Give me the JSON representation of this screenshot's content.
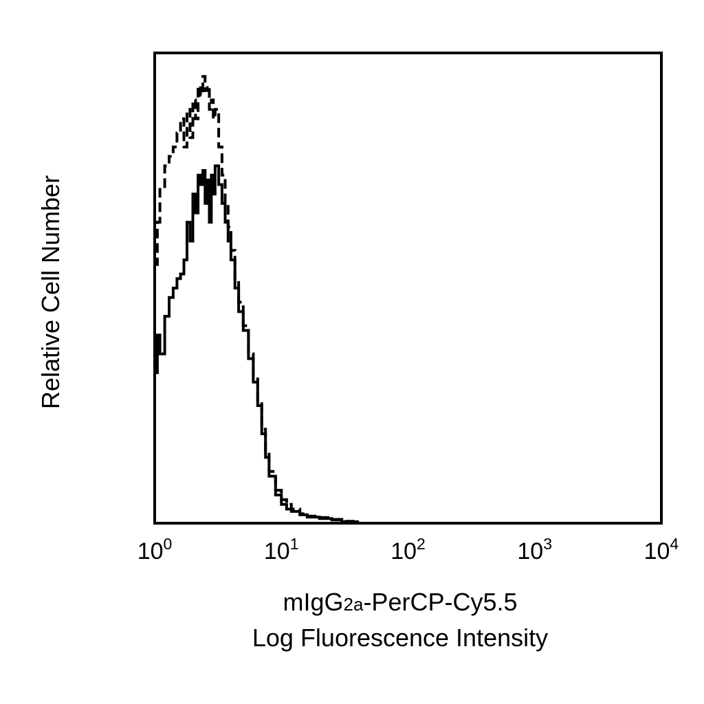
{
  "chart_data": {
    "type": "line",
    "title": "",
    "xlabel_line1_prefix": "mIgG",
    "xlabel_line1_subscript": "2a",
    "xlabel_line1_suffix": "-PerCP-Cy5.5",
    "xlabel_line2": "Log Fluorescence Intensity",
    "ylabel": "Relative Cell Number",
    "x_scale": "log",
    "xlim": [
      1,
      10000
    ],
    "ylim": [
      0,
      100
    ],
    "grid": false,
    "x_ticks": [
      {
        "value": 1,
        "base": "10",
        "exp": "0"
      },
      {
        "value": 10,
        "base": "10",
        "exp": "1"
      },
      {
        "value": 100,
        "base": "10",
        "exp": "2"
      },
      {
        "value": 1000,
        "base": "10",
        "exp": "3"
      },
      {
        "value": 10000,
        "base": "10",
        "exp": "4"
      }
    ],
    "series": [
      {
        "style": "dashed",
        "x": [
          1.0,
          1.05,
          1.1,
          1.2,
          1.3,
          1.4,
          1.5,
          1.6,
          1.7,
          1.8,
          1.9,
          2.0,
          2.1,
          2.2,
          2.3,
          2.4,
          2.5,
          2.6,
          2.7,
          2.8,
          2.9,
          3.0,
          3.2,
          3.4,
          3.6,
          3.8,
          4.0,
          4.3,
          4.6,
          5.0,
          5.5,
          6.0,
          6.5,
          7.0,
          7.5,
          8.0,
          9.0,
          10,
          11,
          12,
          14,
          16,
          20,
          25,
          30,
          40
        ],
        "y": [
          55,
          64,
          71,
          76,
          78,
          80,
          83,
          86,
          80,
          88,
          82,
          90,
          86,
          93,
          91,
          95,
          92,
          93,
          88,
          90,
          86,
          88,
          80,
          74,
          68,
          63,
          58,
          52,
          47,
          42,
          36,
          31,
          26,
          20,
          15,
          11,
          7,
          5,
          4,
          3,
          2,
          1.5,
          1.2,
          0.8,
          0.4,
          0
        ]
      },
      {
        "style": "solid",
        "x": [
          1.0,
          1.05,
          1.1,
          1.2,
          1.3,
          1.4,
          1.5,
          1.6,
          1.7,
          1.8,
          1.9,
          2.0,
          2.1,
          2.2,
          2.3,
          2.4,
          2.5,
          2.6,
          2.7,
          2.8,
          2.9,
          3.0,
          3.2,
          3.4,
          3.6,
          3.8,
          4.0,
          4.3,
          4.6,
          5.0,
          5.5,
          6.0,
          6.5,
          7.0,
          7.5,
          8.0,
          9.0,
          10,
          11,
          12,
          14,
          16,
          20,
          25,
          30,
          40
        ],
        "y": [
          32,
          40,
          36,
          44,
          48,
          50,
          52,
          53,
          56,
          64,
          60,
          70,
          66,
          74,
          72,
          75,
          68,
          73,
          64,
          74,
          70,
          76,
          72,
          68,
          64,
          60,
          56,
          50,
          45,
          41,
          35,
          30,
          25,
          19,
          14,
          10,
          6,
          4,
          3,
          2.5,
          1.8,
          1.3,
          1.0,
          0.7,
          0.3,
          0
        ]
      }
    ]
  }
}
